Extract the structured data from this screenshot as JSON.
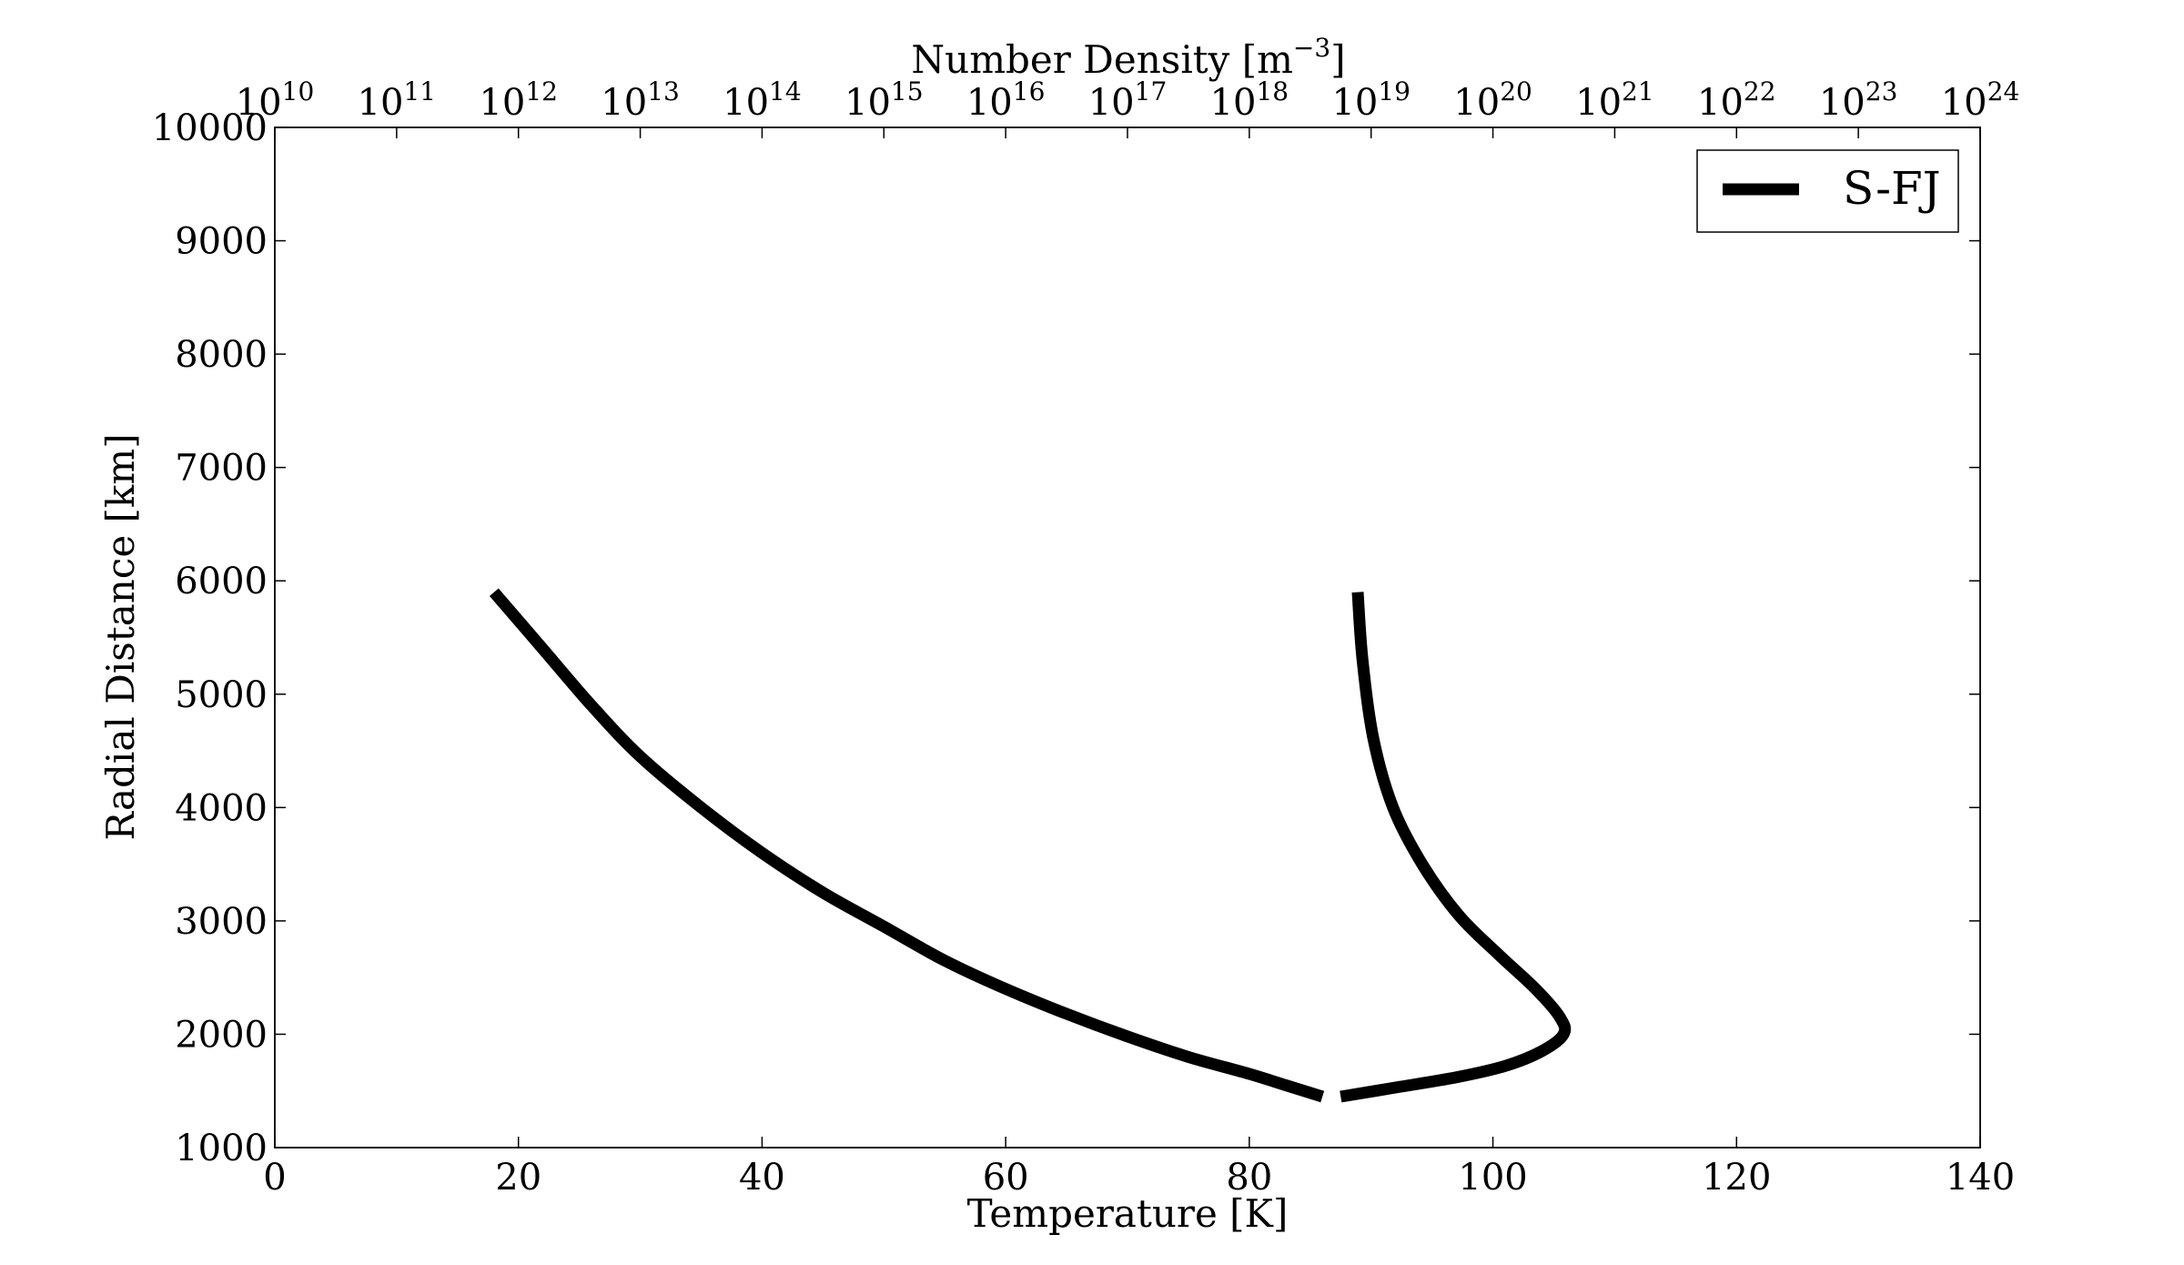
{
  "chart_data": {
    "type": "line",
    "xlabel": "Temperature [K]",
    "ylabel": "Radial Distance [km]",
    "x2label_base": "Number Density [m",
    "x2label_exp": "−3",
    "x2label_suffix": "]",
    "xlim": [
      0,
      140
    ],
    "ylim": [
      1000,
      10000
    ],
    "x2lim_log10": [
      10,
      24
    ],
    "x2scale": "log",
    "x_ticks": [
      0,
      20,
      40,
      60,
      80,
      100,
      120,
      140
    ],
    "x_tick_labels": [
      "0",
      "20",
      "40",
      "60",
      "80",
      "100",
      "120",
      "140"
    ],
    "y_ticks": [
      1000,
      2000,
      3000,
      4000,
      5000,
      6000,
      7000,
      8000,
      9000,
      10000
    ],
    "y_tick_labels": [
      "1000",
      "2000",
      "3000",
      "4000",
      "5000",
      "6000",
      "7000",
      "8000",
      "9000",
      "10000"
    ],
    "x2_tick_exponents": [
      10,
      11,
      12,
      13,
      14,
      15,
      16,
      17,
      18,
      19,
      20,
      21,
      22,
      23,
      24
    ],
    "x2_tick_base": "10",
    "x2_tick_exp_labels": [
      "10",
      "11",
      "12",
      "13",
      "14",
      "15",
      "16",
      "17",
      "18",
      "19",
      "20",
      "21",
      "22",
      "23",
      "24"
    ],
    "grid": false,
    "legend": {
      "placement": "top-right",
      "entries": [
        "S-FJ"
      ]
    },
    "series": [
      {
        "name": "S-FJ",
        "axis": "top",
        "color": "#000000",
        "x_log10": [
          11.8,
          12.2,
          12.6,
          13.0,
          13.5,
          14.0,
          14.5,
          15.0,
          15.5,
          16.0,
          16.5,
          17.0,
          17.5,
          18.0,
          18.3,
          18.6
        ],
        "y": [
          5900,
          5400,
          4900,
          4450,
          4000,
          3600,
          3250,
          2950,
          2650,
          2400,
          2180,
          1980,
          1800,
          1650,
          1550,
          1450
        ]
      },
      {
        "name": "",
        "axis": "bottom",
        "color": "#000000",
        "x": [
          87.5,
          92,
          97,
          101,
          104,
          105.8,
          105.5,
          103.5,
          100.5,
          97.2,
          94.2,
          91.8,
          90.2,
          89.3,
          88.9
        ],
        "y": [
          1450,
          1530,
          1620,
          1720,
          1850,
          2000,
          2150,
          2400,
          2700,
          3050,
          3500,
          4000,
          4600,
          5300,
          5900
        ]
      }
    ]
  }
}
